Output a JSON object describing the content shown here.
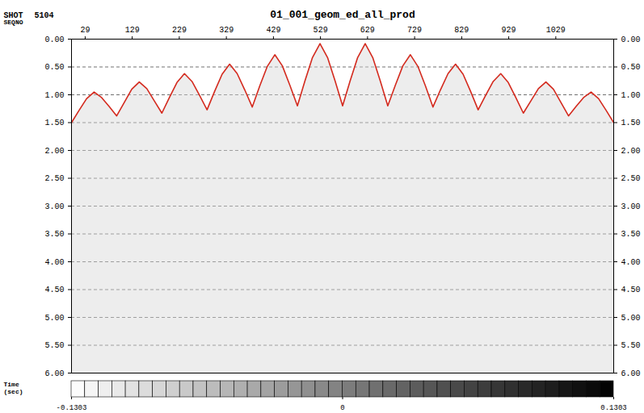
{
  "chart_data": {
    "type": "line",
    "title": "01_001_geom_ed_all_prod",
    "shot_label": "SHOT",
    "shot": 5104,
    "x_label": "SEQNO",
    "y_label": "Time (sec)",
    "x": [
      0,
      16,
      32,
      48,
      64,
      80,
      96,
      112,
      128,
      144,
      160,
      176,
      192,
      208,
      224,
      240,
      256,
      272,
      288,
      304,
      320,
      336,
      352,
      368,
      384,
      400,
      416,
      432,
      448,
      464,
      480,
      496,
      512,
      528,
      544,
      560,
      576,
      592,
      608,
      624,
      640,
      656,
      672,
      688,
      704,
      720,
      736,
      752,
      768,
      784,
      800,
      816,
      832,
      848,
      864,
      880,
      896,
      912,
      928,
      944,
      960,
      976,
      992,
      1008,
      1024,
      1040,
      1056,
      1072,
      1088,
      1104,
      1120,
      1136,
      1152
    ],
    "series": [
      {
        "color": "#d42a1e",
        "values": [
          1.5,
          1.28,
          1.07,
          0.95,
          1.05,
          1.21,
          1.38,
          1.14,
          0.9,
          0.77,
          0.89,
          1.11,
          1.33,
          1.05,
          0.78,
          0.62,
          0.76,
          1.01,
          1.27,
          0.94,
          0.63,
          0.45,
          0.62,
          0.91,
          1.22,
          0.84,
          0.49,
          0.28,
          0.48,
          0.83,
          1.2,
          0.75,
          0.33,
          0.08,
          0.33,
          0.75,
          1.2,
          0.75,
          0.33,
          0.08,
          0.33,
          0.75,
          1.2,
          0.83,
          0.48,
          0.28,
          0.49,
          0.84,
          1.22,
          0.91,
          0.62,
          0.45,
          0.63,
          0.94,
          1.27,
          1.01,
          0.76,
          0.62,
          0.78,
          1.05,
          1.33,
          1.11,
          0.89,
          0.77,
          0.9,
          1.14,
          1.38,
          1.21,
          1.05,
          0.95,
          1.07,
          1.28,
          1.5
        ]
      }
    ],
    "xlim": [
      0,
      1152
    ],
    "xticks": [
      29,
      129,
      229,
      329,
      429,
      529,
      629,
      729,
      829,
      929,
      1029
    ],
    "ylim": [
      0,
      6
    ],
    "yticks": [
      {
        "value": 0,
        "label": "0.00"
      },
      {
        "value": 0.5,
        "label": "0.50"
      },
      {
        "value": 1,
        "label": "1.00"
      },
      {
        "value": 1.5,
        "label": "1.50"
      },
      {
        "value": 2,
        "label": "2.00"
      },
      {
        "value": 2.5,
        "label": "2.50"
      },
      {
        "value": 3,
        "label": "3.00"
      },
      {
        "value": 3.5,
        "label": "3.50"
      },
      {
        "value": 4,
        "label": "4.00"
      },
      {
        "value": 4.5,
        "label": "4.50"
      },
      {
        "value": 5,
        "label": "5.00"
      },
      {
        "value": 5.5,
        "label": "5.50"
      },
      {
        "value": 6,
        "label": "6.00"
      }
    ],
    "grid": true,
    "colorbar": {
      "range": [
        -0.1303,
        0.1303
      ],
      "ticks": [
        -0.1303,
        0,
        0.1303
      ]
    }
  }
}
